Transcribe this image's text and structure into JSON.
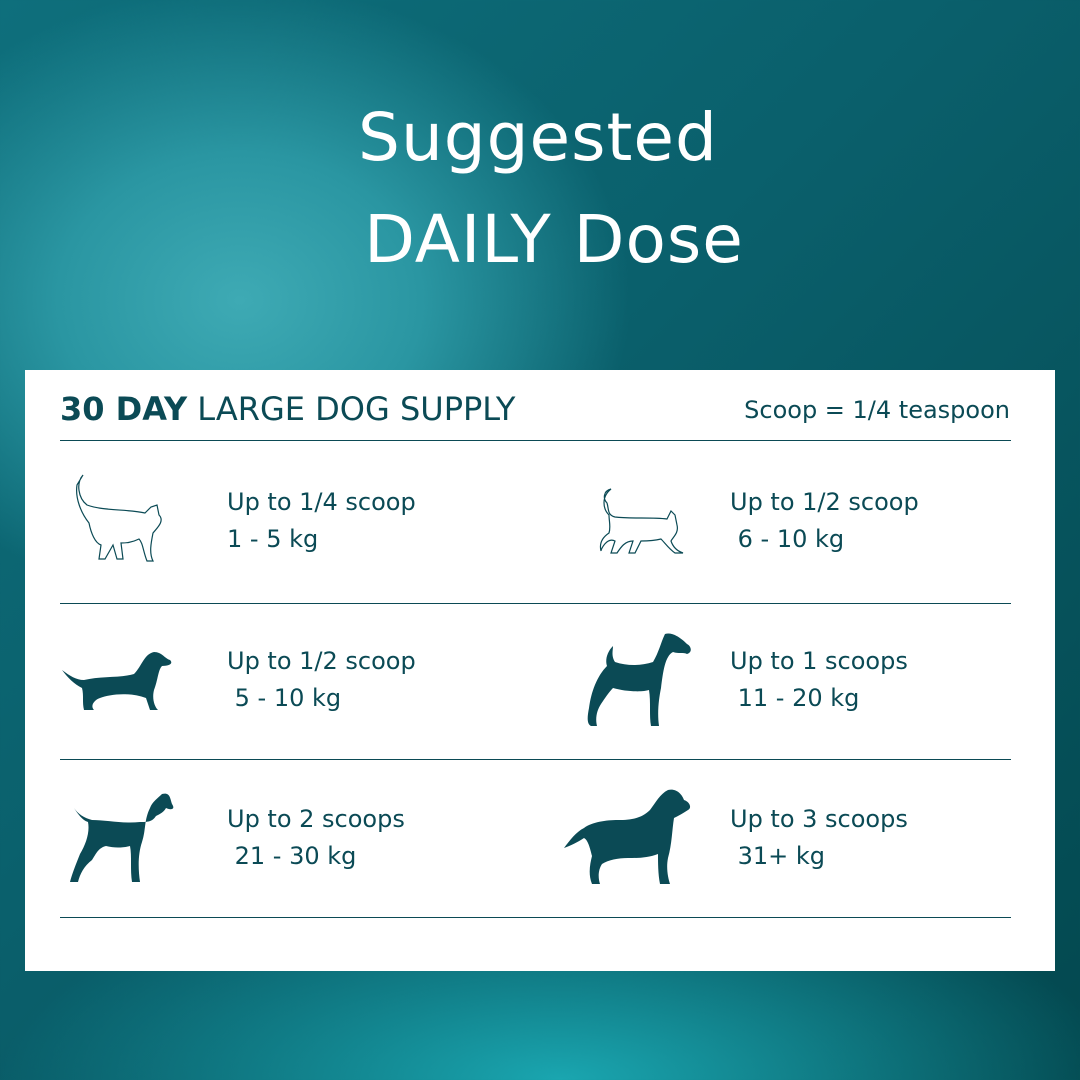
{
  "title": {
    "line1": "Suggested",
    "line2": "DAILY Dose"
  },
  "card": {
    "header_bold": "30 DAY",
    "header_rest": " LARGE DOG SUPPLY",
    "scoop_note": "Scoop = 1/4 teaspoon",
    "items": [
      {
        "icon": "cat-outline-icon",
        "dose": "Up to 1/4 scoop",
        "weight": "1 - 5 kg"
      },
      {
        "icon": "cat-outline-small-icon",
        "dose": "Up to 1/2 scoop",
        "weight": " 6 - 10 kg"
      },
      {
        "icon": "small-dog-icon",
        "dose": "Up to 1/2 scoop",
        "weight": " 5 - 10 kg"
      },
      {
        "icon": "terrier-dog-icon",
        "dose": "Up to 1 scoops",
        "weight": " 11 - 20 kg"
      },
      {
        "icon": "medium-dog-icon",
        "dose": "Up to 2 scoops",
        "weight": " 21 - 30 kg"
      },
      {
        "icon": "large-dog-icon",
        "dose": "Up to 3 scoops",
        "weight": " 31+ kg"
      }
    ]
  },
  "colors": {
    "text": "#0b4a55",
    "card": "#ffffff",
    "background": "#0a5f6b"
  }
}
